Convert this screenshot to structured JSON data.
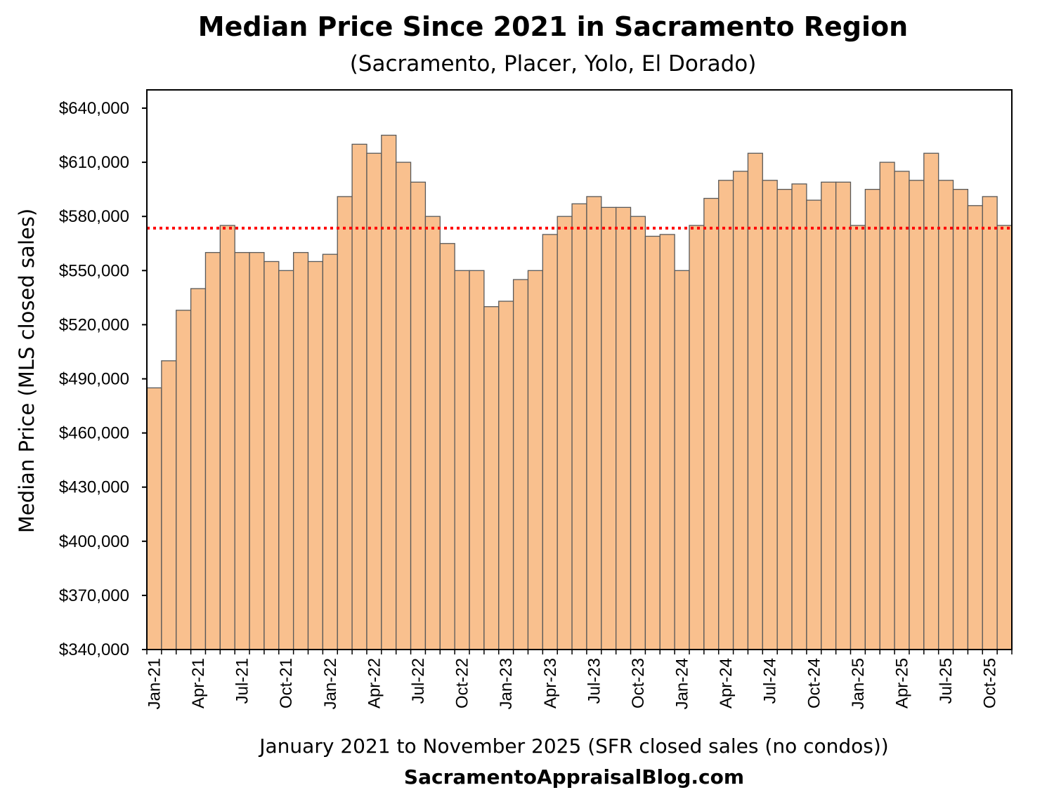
{
  "chart_data": {
    "type": "bar",
    "title": "Median Price Since 2021 in Sacramento Region",
    "subtitle": "(Sacramento, Placer,  Yolo, El Dorado)",
    "xlabel": "January 2021 to November 2025 (SFR closed sales (no condos))",
    "ylabel": "Median Price (MLS closed sales)",
    "source": "SacramentoAppraisalBlog.com",
    "ylim": [
      340000,
      650000
    ],
    "ytick_values": [
      340000,
      370000,
      400000,
      430000,
      460000,
      490000,
      520000,
      550000,
      580000,
      610000,
      640000
    ],
    "ytick_labels": [
      "$340,000",
      "$370,000",
      "$400,000",
      "$430,000",
      "$460,000",
      "$490,000",
      "$520,000",
      "$550,000",
      "$580,000",
      "$610,000",
      "$640,000"
    ],
    "xtick_labels": [
      "Jan-21",
      "Apr-21",
      "Jul-21",
      "Oct-21",
      "Jan-22",
      "Apr-22",
      "Jul-22",
      "Oct-22",
      "Jan-23",
      "Apr-23",
      "Jul-23",
      "Oct-23",
      "Jan-24",
      "Apr-24",
      "Jul-24",
      "Oct-24",
      "Jan-25",
      "Apr-25",
      "Jul-25",
      "Oct-25"
    ],
    "xtick_every": 3,
    "categories": [
      "Jan-21",
      "Feb-21",
      "Mar-21",
      "Apr-21",
      "May-21",
      "Jun-21",
      "Jul-21",
      "Aug-21",
      "Sep-21",
      "Oct-21",
      "Nov-21",
      "Dec-21",
      "Jan-22",
      "Feb-22",
      "Mar-22",
      "Apr-22",
      "May-22",
      "Jun-22",
      "Jul-22",
      "Aug-22",
      "Sep-22",
      "Oct-22",
      "Nov-22",
      "Dec-22",
      "Jan-23",
      "Feb-23",
      "Mar-23",
      "Apr-23",
      "May-23",
      "Jun-23",
      "Jul-23",
      "Aug-23",
      "Sep-23",
      "Oct-23",
      "Nov-23",
      "Dec-23",
      "Jan-24",
      "Feb-24",
      "Mar-24",
      "Apr-24",
      "May-24",
      "Jun-24",
      "Jul-24",
      "Aug-24",
      "Sep-24",
      "Oct-24",
      "Nov-24",
      "Dec-24",
      "Jan-25",
      "Feb-25",
      "Mar-25",
      "Apr-25",
      "May-25",
      "Jun-25",
      "Jul-25",
      "Aug-25",
      "Sep-25",
      "Oct-25",
      "Nov-25"
    ],
    "values": [
      485000,
      500000,
      528000,
      540000,
      560000,
      575000,
      560000,
      560000,
      555000,
      550000,
      560000,
      555000,
      559000,
      591000,
      620000,
      615000,
      625000,
      610000,
      599000,
      580000,
      565000,
      550000,
      550000,
      530000,
      533000,
      545000,
      550000,
      570000,
      580000,
      587000,
      591000,
      585000,
      585000,
      580000,
      569000,
      570000,
      550000,
      575000,
      590000,
      600000,
      605000,
      615000,
      600000,
      595000,
      598000,
      589000,
      599000,
      599000,
      575000,
      595000,
      610000,
      605000,
      600000,
      615000,
      600000,
      595000,
      586000,
      591000,
      575000
    ],
    "reference_line": {
      "value": 573500,
      "style": "dotted",
      "color": "#ff0000"
    },
    "colors": {
      "bar_fill": "#f9c08e",
      "bar_edge": "#595959",
      "frame": "#000000"
    },
    "grid": false,
    "legend": "none"
  }
}
